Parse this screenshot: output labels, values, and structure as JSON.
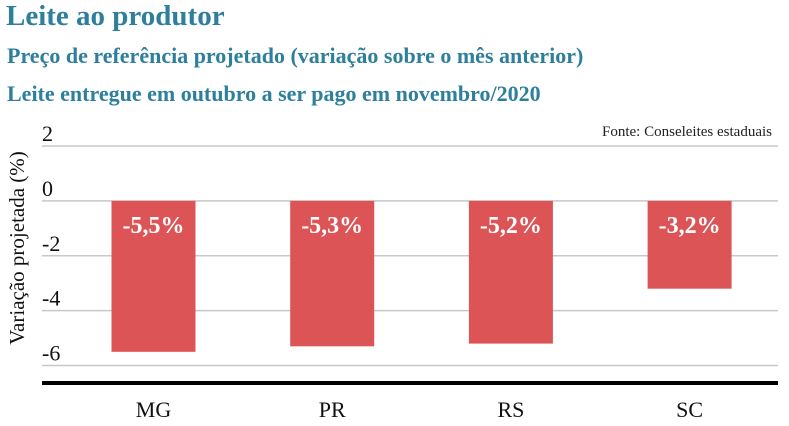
{
  "header": {
    "title": "Leite ao produtor",
    "subtitle1": "Preço de referência projetado (variação sobre o mês anterior)",
    "subtitle2": "Leite entregue em outubro a ser pago em novembro/2020"
  },
  "colors": {
    "title": "#2d7f9c",
    "bar": "#dc5456",
    "grid": "#c8c8c8",
    "axis": "#000000"
  },
  "chart_data": {
    "type": "bar",
    "categories": [
      "MG",
      "PR",
      "RS",
      "SC"
    ],
    "values": [
      -5.5,
      -5.3,
      -5.2,
      -3.2
    ],
    "data_labels": [
      "-5,5%",
      "-5,3%",
      "-5,2%",
      "-3,2%"
    ],
    "ylabel": "Variação projetada (%)",
    "xlabel": "",
    "ylim": [
      -6.6,
      2
    ],
    "yticks": [
      2,
      0,
      -2,
      -4,
      -6
    ],
    "ytick_labels": [
      "2",
      "0",
      "-2",
      "-4",
      "-6"
    ],
    "grid": true,
    "source": "Fonte: Conseleites estaduais"
  }
}
